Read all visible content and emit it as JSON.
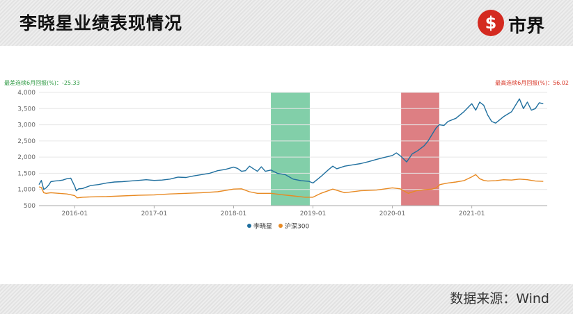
{
  "header": {
    "title": "李晓星业绩表现情况",
    "logo_icon": "currency-s-icon",
    "logo_text": "市界",
    "logo_color": "#d42a20"
  },
  "footer": {
    "source": "数据来源：Wind"
  },
  "chart_data": {
    "type": "line",
    "annotations": {
      "left": "最差连续6月回报(%)：-25.33",
      "right": "最高连续6月回报(%)：56.02",
      "left_color": "#2e9a43",
      "right_color": "#d8392a"
    },
    "ylim": [
      500,
      4000
    ],
    "yticks": [
      500,
      1000,
      1500,
      2000,
      2500,
      3000,
      3500,
      4000
    ],
    "ytick_labels": [
      "500",
      "1,000",
      "1,500",
      "2,000",
      "2,500",
      "3,000",
      "3,500",
      "4,000"
    ],
    "xlim": [
      2015.55,
      2021.95
    ],
    "xticks": [
      2016,
      2017,
      2018,
      2019,
      2020,
      2021
    ],
    "xtick_labels": [
      "2016-01",
      "2017-01",
      "2018-01",
      "2019-01",
      "2020-01",
      "2021-01"
    ],
    "shaded_regions": [
      {
        "from": 2018.47,
        "to": 2018.96,
        "color": "#6cc79a"
      },
      {
        "from": 2020.11,
        "to": 2020.59,
        "color": "#d7686d"
      }
    ],
    "grid": true,
    "legend_position": "bottom",
    "series": [
      {
        "name": "李晓星",
        "color": "#1f6f9e",
        "x": [
          2015.55,
          2015.58,
          2015.61,
          2015.64,
          2015.67,
          2015.7,
          2015.75,
          2015.8,
          2015.85,
          2015.9,
          2015.95,
          2016.0,
          2016.02,
          2016.05,
          2016.1,
          2016.2,
          2016.3,
          2016.4,
          2016.5,
          2016.6,
          2016.7,
          2016.8,
          2016.9,
          2017.0,
          2017.1,
          2017.2,
          2017.3,
          2017.4,
          2017.5,
          2017.6,
          2017.7,
          2017.8,
          2017.9,
          2018.0,
          2018.05,
          2018.1,
          2018.15,
          2018.2,
          2018.25,
          2018.3,
          2018.35,
          2018.4,
          2018.47,
          2018.55,
          2018.65,
          2018.75,
          2018.85,
          2018.95,
          2019.0,
          2019.1,
          2019.2,
          2019.25,
          2019.3,
          2019.4,
          2019.5,
          2019.6,
          2019.7,
          2019.8,
          2019.9,
          2020.0,
          2020.05,
          2020.11,
          2020.18,
          2020.25,
          2020.32,
          2020.4,
          2020.45,
          2020.5,
          2020.55,
          2020.59,
          2020.65,
          2020.7,
          2020.8,
          2020.9,
          2021.0,
          2021.05,
          2021.1,
          2021.15,
          2021.2,
          2021.25,
          2021.3,
          2021.4,
          2021.5,
          2021.55,
          2021.6,
          2021.65,
          2021.7,
          2021.75,
          2021.8,
          2021.85,
          2021.9
        ],
        "values": [
          1150,
          1280,
          1000,
          1050,
          1130,
          1240,
          1260,
          1270,
          1290,
          1330,
          1350,
          1100,
          960,
          1020,
          1030,
          1120,
          1150,
          1200,
          1230,
          1240,
          1260,
          1280,
          1300,
          1280,
          1290,
          1320,
          1380,
          1370,
          1420,
          1460,
          1500,
          1580,
          1620,
          1690,
          1650,
          1560,
          1580,
          1720,
          1640,
          1560,
          1700,
          1560,
          1600,
          1500,
          1460,
          1320,
          1270,
          1250,
          1200,
          1400,
          1620,
          1720,
          1640,
          1720,
          1760,
          1800,
          1860,
          1930,
          1990,
          2050,
          2130,
          2020,
          1850,
          2100,
          2200,
          2350,
          2500,
          2700,
          2900,
          3000,
          2980,
          3100,
          3200,
          3400,
          3650,
          3450,
          3700,
          3600,
          3300,
          3100,
          3050,
          3250,
          3400,
          3600,
          3800,
          3500,
          3700,
          3450,
          3500,
          3680,
          3650
        ]
      },
      {
        "name": "沪深300",
        "color": "#e88a23",
        "x": [
          2015.55,
          2015.58,
          2015.61,
          2015.64,
          2015.7,
          2015.8,
          2015.9,
          2016.0,
          2016.03,
          2016.1,
          2016.2,
          2016.4,
          2016.6,
          2016.8,
          2017.0,
          2017.2,
          2017.4,
          2017.6,
          2017.8,
          2018.0,
          2018.1,
          2018.2,
          2018.3,
          2018.47,
          2018.6,
          2018.75,
          2018.9,
          2019.0,
          2019.1,
          2019.25,
          2019.4,
          2019.6,
          2019.8,
          2020.0,
          2020.1,
          2020.2,
          2020.3,
          2020.4,
          2020.5,
          2020.55,
          2020.6,
          2020.7,
          2020.8,
          2020.9,
          2021.0,
          2021.05,
          2021.1,
          2021.15,
          2021.2,
          2021.3,
          2021.4,
          2021.5,
          2021.6,
          2021.7,
          2021.8,
          2021.9
        ],
        "values": [
          1080,
          1060,
          900,
          880,
          900,
          880,
          860,
          810,
          740,
          760,
          770,
          780,
          800,
          820,
          830,
          860,
          880,
          900,
          930,
          1010,
          1020,
          930,
          880,
          880,
          840,
          800,
          760,
          760,
          880,
          1010,
          900,
          960,
          980,
          1050,
          1020,
          880,
          960,
          990,
          1010,
          1050,
          1150,
          1200,
          1230,
          1270,
          1390,
          1460,
          1330,
          1280,
          1260,
          1270,
          1300,
          1290,
          1320,
          1300,
          1260,
          1250
        ]
      }
    ]
  }
}
